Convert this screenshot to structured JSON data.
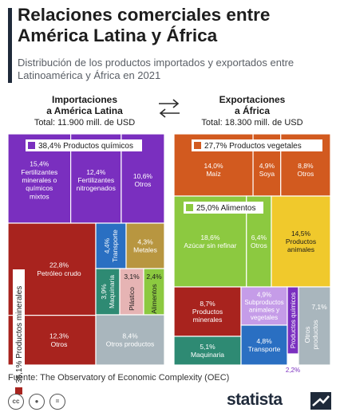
{
  "header": {
    "title": "Relaciones comerciales entre América Latina y África",
    "subtitle": "Distribución de los productos importados y exportados entre Latinoamérica y África en 2021"
  },
  "imports": {
    "heading_line1": "Importaciones",
    "heading_line2": "a América Latina",
    "total": "Total: 11.900 mill. de USD"
  },
  "exports": {
    "heading_line1": "Exportaciones",
    "heading_line2": "a África",
    "total": "Total: 18.300 mill. de USD"
  },
  "footer": {
    "source": "Fuente: The Observatory of Economic Complexity (OEC)",
    "brand": "statista",
    "icons": [
      "cc-icon",
      "person-icon",
      "equals-icon"
    ]
  },
  "colors": {
    "quimicos": "#7a2fbf",
    "quimicos_light": "#c59ce8",
    "minerales": "#a8231e",
    "transporte": "#2a6fc2",
    "metales": "#b89640",
    "maquinaria": "#2e8a73",
    "plastico": "#e6b4b4",
    "alimentos": "#8cc940",
    "otros": "#a9b6bd",
    "vegetales": "#d25a1f",
    "animales": "#f0c92c"
  },
  "chart_data": {
    "type": "treemap",
    "treemaps": [
      {
        "name": "Importaciones a América Latina",
        "groups": [
          {
            "label": "38,4% Productos químicos",
            "value": 38.4,
            "items": [
              {
                "label": "15,4%",
                "sublabel": "Fertilizantes minerales o químicos mixtos",
                "value": 15.4
              },
              {
                "label": "12,4%",
                "sublabel": "Fertilizantes nitrogenados",
                "value": 12.4
              },
              {
                "label": "10,6%",
                "sublabel": "Otros",
                "value": 10.6
              }
            ]
          },
          {
            "label": "35,1% Productos minerales",
            "value": 35.1,
            "items": [
              {
                "label": "22,8%",
                "sublabel": "Petróleo crudo",
                "value": 22.8
              },
              {
                "label": "12,3%",
                "sublabel": "Otros",
                "value": 12.3
              }
            ]
          },
          {
            "label": "4,4%",
            "sublabel": "Transporte",
            "value": 4.4
          },
          {
            "label": "4,3%",
            "sublabel": "Metales",
            "value": 4.3
          },
          {
            "label": "3,9%",
            "sublabel": "Maquinaria",
            "value": 3.9
          },
          {
            "label": "3,1%",
            "sublabel": "Plástico",
            "value": 3.1
          },
          {
            "label": "2,4%",
            "sublabel": "Alimentos",
            "value": 2.4
          },
          {
            "label": "8,4%",
            "sublabel": "Otros productos",
            "value": 8.4
          }
        ]
      },
      {
        "name": "Exportaciones a África",
        "groups": [
          {
            "label": "27,7% Productos vegetales",
            "value": 27.7,
            "items": [
              {
                "label": "14,0%",
                "sublabel": "Maíz",
                "value": 14.0
              },
              {
                "label": "4,9%",
                "sublabel": "Soya",
                "value": 4.9
              },
              {
                "label": "8,8%",
                "sublabel": "Otros",
                "value": 8.8
              }
            ]
          },
          {
            "label": "25,0% Alimentos",
            "value": 25.0,
            "items": [
              {
                "label": "18,6%",
                "sublabel": "Azúcar sin refinar",
                "value": 18.6
              },
              {
                "label": "6,4%",
                "sublabel": "Otros",
                "value": 6.4
              }
            ]
          },
          {
            "label": "14,5%",
            "sublabel": "Productos animales",
            "value": 14.5
          },
          {
            "label": "8,7%",
            "sublabel": "Productos minerales",
            "value": 8.7
          },
          {
            "label": "4,9%",
            "sublabel": "Subproductos animales y vegetales",
            "value": 4.9
          },
          {
            "label": "5,1%",
            "sublabel": "Maquinaria",
            "value": 5.1
          },
          {
            "label": "4,8%",
            "sublabel": "Transporte",
            "value": 4.8
          },
          {
            "label": "2,2%",
            "sublabel": "Productos químicos",
            "value": 2.2
          },
          {
            "label": "7,1%",
            "sublabel": "Otros productos",
            "value": 7.1
          }
        ]
      }
    ]
  }
}
